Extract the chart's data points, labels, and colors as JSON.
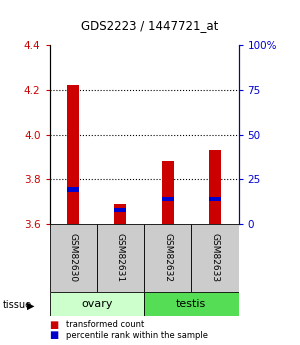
{
  "title": "GDS2223 / 1447721_at",
  "samples": [
    "GSM82630",
    "GSM82631",
    "GSM82632",
    "GSM82633"
  ],
  "red_values": [
    4.22,
    3.69,
    3.88,
    3.93
  ],
  "blue_values": [
    3.755,
    3.662,
    3.712,
    3.712
  ],
  "y_min": 3.6,
  "y_max": 4.4,
  "y_ticks_left": [
    3.6,
    3.8,
    4.0,
    4.2,
    4.4
  ],
  "y_ticks_right": [
    0,
    25,
    50,
    75,
    100
  ],
  "y_ticks_right_labels": [
    "0",
    "25",
    "50",
    "75",
    "100%"
  ],
  "grid_lines": [
    3.8,
    4.0,
    4.2
  ],
  "bar_width": 0.25,
  "red_color": "#cc0000",
  "blue_color": "#0000cc",
  "tissue_data": [
    {
      "label": "ovary",
      "start": 0,
      "end": 2,
      "color": "#ccffcc"
    },
    {
      "label": "testis",
      "start": 2,
      "end": 4,
      "color": "#55dd55"
    }
  ],
  "legend_items": [
    {
      "label": "transformed count",
      "color": "#cc0000"
    },
    {
      "label": "percentile rank within the sample",
      "color": "#0000cc"
    }
  ],
  "sample_box_color": "#cccccc"
}
